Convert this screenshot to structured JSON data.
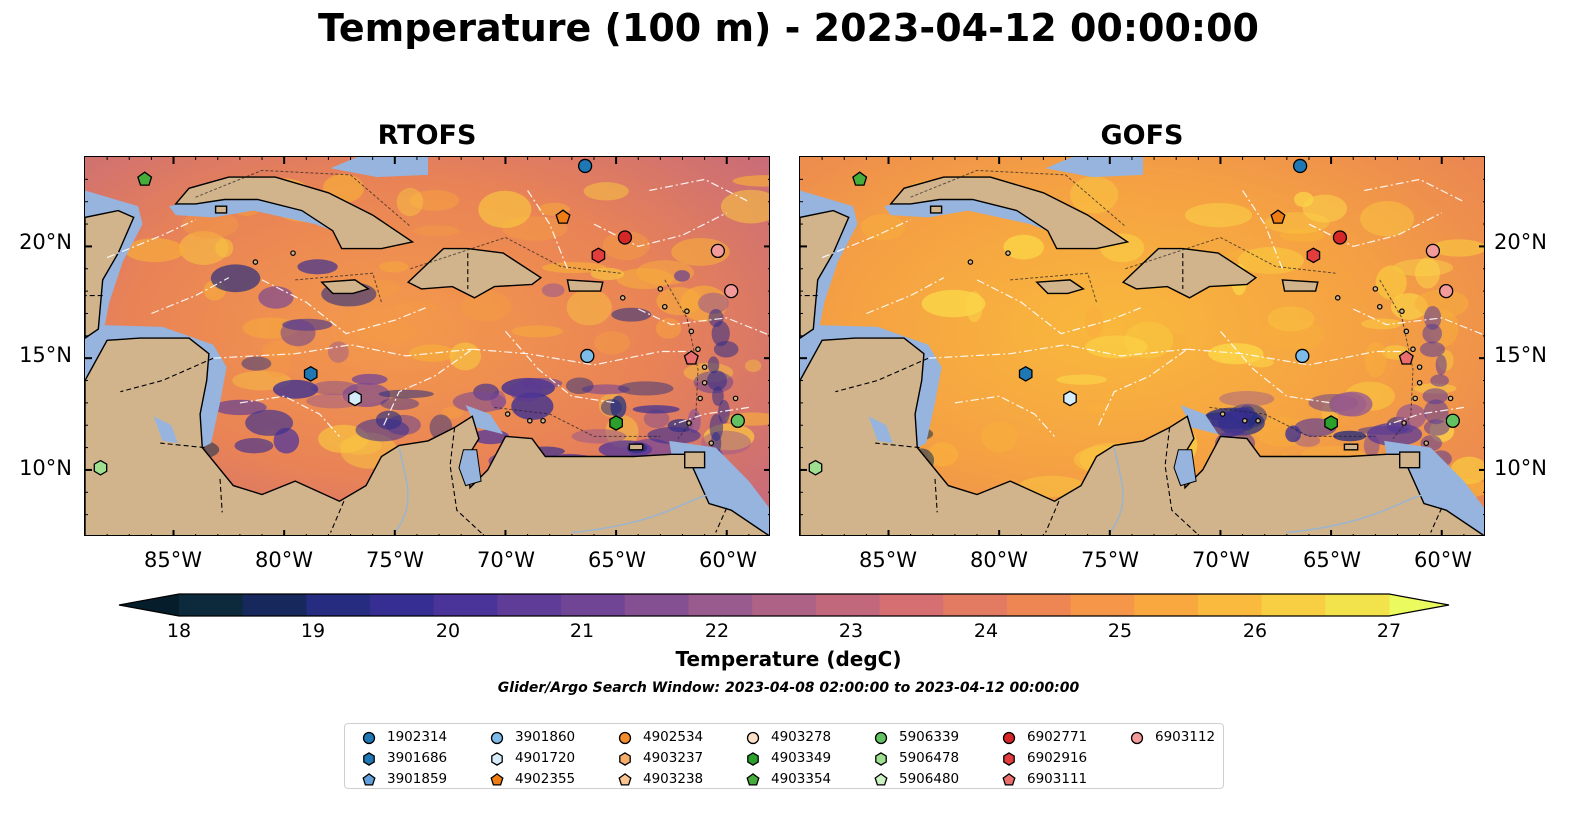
{
  "title": "Temperature (100 m) - 2023-04-12 00:00:00",
  "panels": [
    {
      "title": "RTOFS"
    },
    {
      "title": "GOFS"
    }
  ],
  "lon_labels": [
    "85°W",
    "80°W",
    "75°W",
    "70°W",
    "65°W",
    "60°W"
  ],
  "lat_labels": [
    "20°N",
    "15°N",
    "10°N"
  ],
  "colorbar": {
    "label": "Temperature (degC)",
    "ticks": [
      "18",
      "19",
      "20",
      "21",
      "22",
      "23",
      "24",
      "25",
      "26",
      "27"
    ],
    "min": 18,
    "max": 27,
    "step": 0.5,
    "colors": [
      "#0c2a3c",
      "#17285c",
      "#262d80",
      "#372e94",
      "#4a3399",
      "#5e3c98",
      "#714596",
      "#845091",
      "#995a8e",
      "#ae6286",
      "#c2687d",
      "#d56f72",
      "#e37a62",
      "#ee8654",
      "#f59648",
      "#f8a83e",
      "#f9ba3e",
      "#f8cf42",
      "#f2e24c"
    ],
    "extend_low": "#061d2b",
    "extend_high": "#ebfa5e"
  },
  "search_window": "Glider/Argo Search Window: 2023-04-08 02:00:00 to 2023-04-12 00:00:00",
  "legend": [
    {
      "id": "1902314",
      "marker": "circle",
      "color": "#1f77b4"
    },
    {
      "id": "3901686",
      "marker": "hexagon",
      "color": "#1f77b4"
    },
    {
      "id": "3901859",
      "marker": "pentagon",
      "color": "#5fa0dc"
    },
    {
      "id": "3901860",
      "marker": "circle",
      "color": "#7dbbe8"
    },
    {
      "id": "4901720",
      "marker": "hexagon",
      "color": "#d7ecfa"
    },
    {
      "id": "4902355",
      "marker": "pentagon",
      "color": "#f07d14"
    },
    {
      "id": "4902534",
      "marker": "circle",
      "color": "#f28c2c"
    },
    {
      "id": "4903237",
      "marker": "hexagon",
      "color": "#f9ad6b"
    },
    {
      "id": "4903238",
      "marker": "pentagon",
      "color": "#fbc38f"
    },
    {
      "id": "4903278",
      "marker": "circle",
      "color": "#fce0c8"
    },
    {
      "id": "4903349",
      "marker": "hexagon",
      "color": "#2ca02c"
    },
    {
      "id": "4903354",
      "marker": "pentagon",
      "color": "#46ad3a"
    },
    {
      "id": "5906339",
      "marker": "circle",
      "color": "#62c262"
    },
    {
      "id": "5906478",
      "marker": "hexagon",
      "color": "#9fe090"
    },
    {
      "id": "5906480",
      "marker": "pentagon",
      "color": "#ccf2c3"
    },
    {
      "id": "6902771",
      "marker": "circle",
      "color": "#d62728"
    },
    {
      "id": "6902916",
      "marker": "hexagon",
      "color": "#e23c3c"
    },
    {
      "id": "6903111",
      "marker": "pentagon",
      "color": "#eb6e6e"
    },
    {
      "id": "6903112",
      "marker": "circle",
      "color": "#f39a9a"
    }
  ],
  "markers_on_map": [
    {
      "id": "1902314",
      "lon": -66.4,
      "lat": 23.6
    },
    {
      "id": "4903354",
      "lon": -86.3,
      "lat": 23.0
    },
    {
      "id": "4902355",
      "lon": -67.4,
      "lat": 21.3
    },
    {
      "id": "6902771",
      "lon": -64.6,
      "lat": 20.4
    },
    {
      "id": "6902916",
      "lon": -65.8,
      "lat": 19.6
    },
    {
      "id": "6903112",
      "lon": -60.4,
      "lat": 19.8
    },
    {
      "id": "6903112",
      "lon": -59.8,
      "lat": 18.0
    },
    {
      "id": "3901860",
      "lon": -66.3,
      "lat": 15.1
    },
    {
      "id": "6903111",
      "lon": -61.6,
      "lat": 15.0
    },
    {
      "id": "3901686",
      "lon": -78.8,
      "lat": 14.3
    },
    {
      "id": "4901720",
      "lon": -76.8,
      "lat": 13.2
    },
    {
      "id": "4903349",
      "lon": -65.0,
      "lat": 12.1
    },
    {
      "id": "5906339",
      "lon": -59.5,
      "lat": 12.2
    },
    {
      "id": "5906478",
      "lon": -88.3,
      "lat": 10.1
    }
  ]
}
